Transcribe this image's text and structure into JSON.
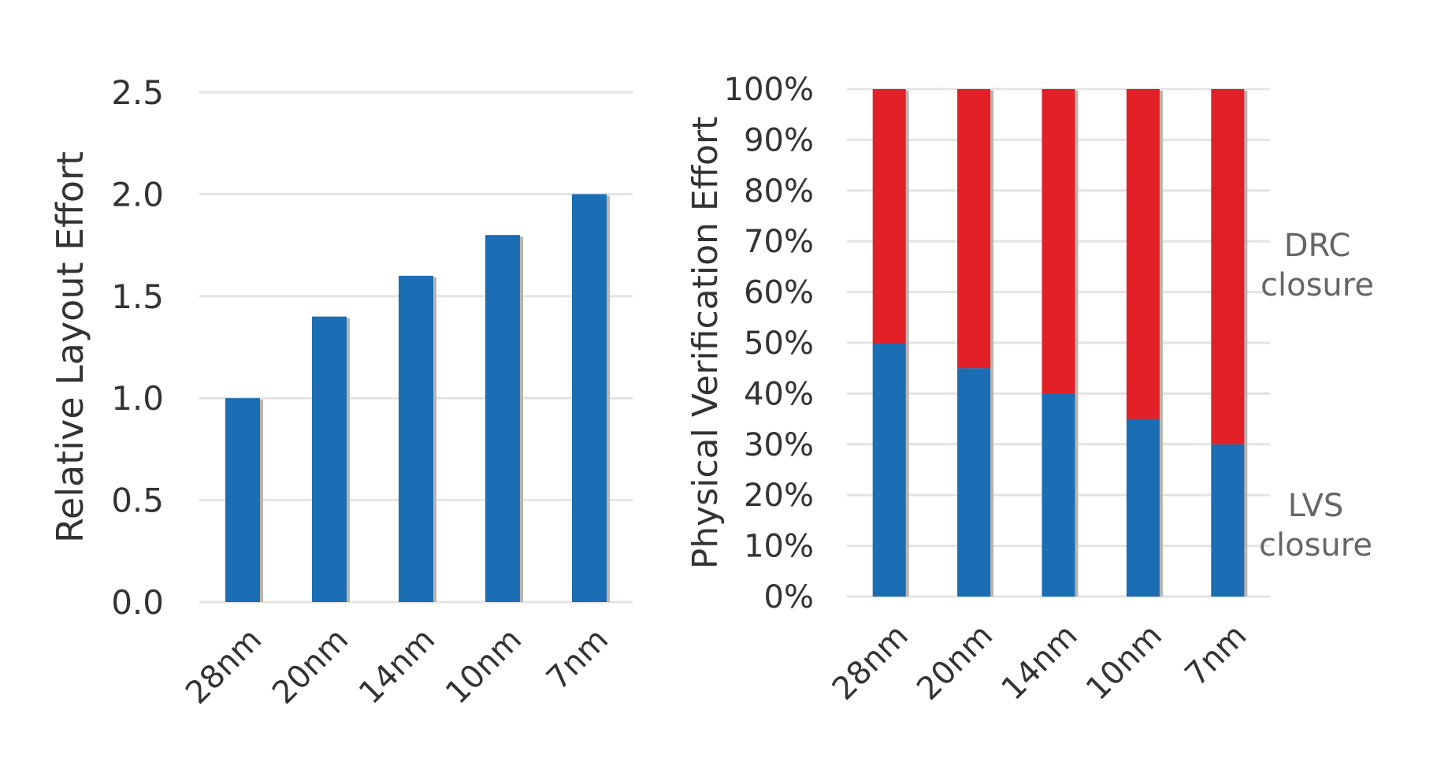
{
  "chart_data": [
    {
      "type": "bar",
      "ylabel": "Relative Layout Effort",
      "categories": [
        "28nm",
        "20nm",
        "14nm",
        "10nm",
        "7nm"
      ],
      "values": [
        1.0,
        1.4,
        1.6,
        1.8,
        2.0
      ],
      "ylim": [
        0,
        2.5
      ],
      "yticks": [
        "0.0",
        "0.5",
        "1.0",
        "1.5",
        "2.0",
        "2.5"
      ],
      "grid": true,
      "colors": {
        "bar": "#1b6db4"
      }
    },
    {
      "type": "bar",
      "stacked": true,
      "ylabel": "Physical Verification Effort",
      "categories": [
        "28nm",
        "20nm",
        "14nm",
        "10nm",
        "7nm"
      ],
      "ylim": [
        0,
        100
      ],
      "yticks": [
        "0%",
        "10%",
        "20%",
        "30%",
        "40%",
        "50%",
        "60%",
        "70%",
        "80%",
        "90%",
        "100%"
      ],
      "grid": true,
      "series": [
        {
          "name": "LVS closure",
          "values": [
            50,
            45,
            40,
            35,
            30
          ],
          "color": "#1b6db4"
        },
        {
          "name": "DRC closure",
          "values": [
            50,
            55,
            60,
            65,
            70
          ],
          "color": "#e32027"
        }
      ],
      "labels": [
        {
          "series": "DRC closure",
          "line1": "DRC",
          "line2": "closure"
        },
        {
          "series": "LVS closure",
          "line1": "LVS",
          "line2": "closure"
        }
      ]
    }
  ]
}
